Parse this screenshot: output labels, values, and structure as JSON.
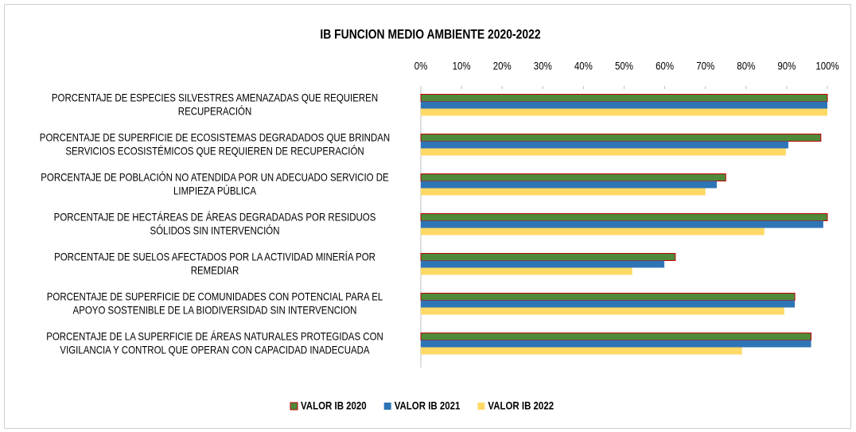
{
  "chart_data": {
    "type": "hbar",
    "title": "IB FUNCION MEDIO AMBIENTE 2020-2022",
    "categories": [
      [
        "PORCENTAJE DE ESPECIES SILVESTRES AMENAZADAS QUE REQUIEREN",
        "RECUPERACIÓN"
      ],
      [
        "PORCENTAJE DE SUPERFICIE DE ECOSISTEMAS DEGRADADOS QUE BRINDAN",
        "SERVICIOS ECOSISTÉMICOS QUE REQUIEREN DE RECUPERACIÓN"
      ],
      [
        "PORCENTAJE DE POBLACIÓN NO ATENDIDA POR UN ADECUADO SERVICIO DE",
        "LIMPIEZA PÚBLICA"
      ],
      [
        "PORCENTAJE DE HECTÁREAS DE ÁREAS DEGRADADAS POR RESIDUOS",
        "SÓLIDOS SIN INTERVENCIÓN"
      ],
      [
        "PORCENTAJE DE SUELOS AFECTADOS POR LA ACTIVIDAD MINERÍA POR",
        "REMEDIAR"
      ],
      [
        "PORCENTAJE DE SUPERFICIE DE COMUNIDADES CON POTENCIAL PARA EL",
        "APOYO SOSTENIBLE DE LA BIODIVERSIDAD SIN INTERVENCION"
      ],
      [
        "PORCENTAJE DE LA SUPERFICIE DE ÁREAS NATURALES PROTEGIDAS CON",
        "VIGILANCIA Y CONTROL QUE OPERAN CON CAPACIDAD INADECUADA"
      ]
    ],
    "series": [
      {
        "name": "VALOR IB 2020",
        "color": "#4e8a3a",
        "values": [
          100,
          98.4,
          75,
          100,
          62.6,
          92,
          96
        ]
      },
      {
        "name": "VALOR IB 2021",
        "color": "#2e75b6",
        "values": [
          100,
          90.4,
          72.8,
          99,
          59.9,
          92,
          96
        ]
      },
      {
        "name": "VALOR IB 2022",
        "color": "#ffd966",
        "values": [
          100,
          89.8,
          70,
          84.5,
          52,
          89.4,
          79
        ]
      }
    ],
    "xlim": [
      0,
      100
    ],
    "xticks": [
      {
        "value": 0,
        "label": "0%"
      },
      {
        "value": 10,
        "label": "10%"
      },
      {
        "value": 20,
        "label": "20%"
      },
      {
        "value": 30,
        "label": "30%"
      },
      {
        "value": 40,
        "label": "40%"
      },
      {
        "value": 50,
        "label": "50%"
      },
      {
        "value": 60,
        "label": "60%"
      },
      {
        "value": 70,
        "label": "70%"
      },
      {
        "value": 80,
        "label": "80%"
      },
      {
        "value": 90,
        "label": "90%"
      },
      {
        "value": 100,
        "label": "100%"
      }
    ],
    "legend": "bottom"
  }
}
